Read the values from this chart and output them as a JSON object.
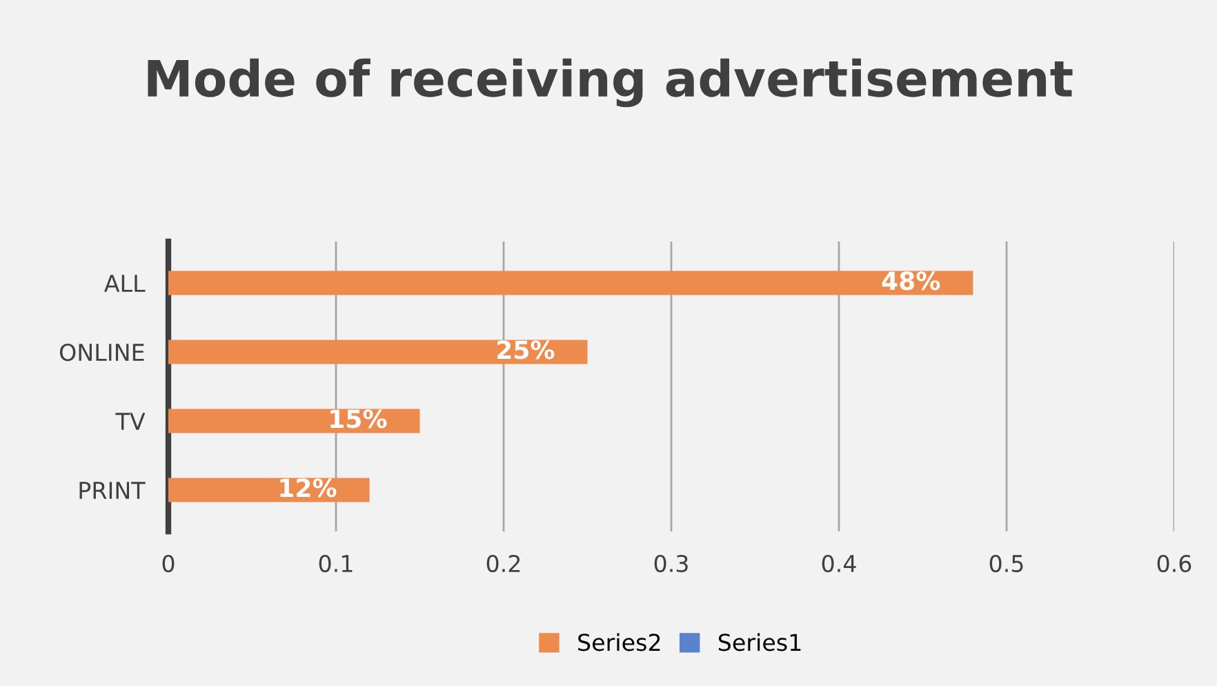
{
  "chart_data": {
    "type": "bar",
    "orientation": "horizontal",
    "title": "Mode of receiving advertisement",
    "categories": [
      "ALL",
      "ONLINE",
      "TV",
      "PRINT"
    ],
    "series": [
      {
        "name": "Series2",
        "color": "#ed8b4f",
        "values": [
          0.48,
          0.25,
          0.15,
          0.12
        ],
        "value_labels": [
          "48%",
          "25%",
          "15%",
          "12%"
        ]
      },
      {
        "name": "Series1",
        "color": "#5b82cc",
        "values": [
          null,
          null,
          null,
          null
        ]
      }
    ],
    "xlim": [
      0,
      0.6
    ],
    "xticks": [
      0,
      0.1,
      0.2,
      0.3,
      0.4,
      0.5,
      0.6
    ],
    "grid": "x",
    "legend": "bottom"
  }
}
